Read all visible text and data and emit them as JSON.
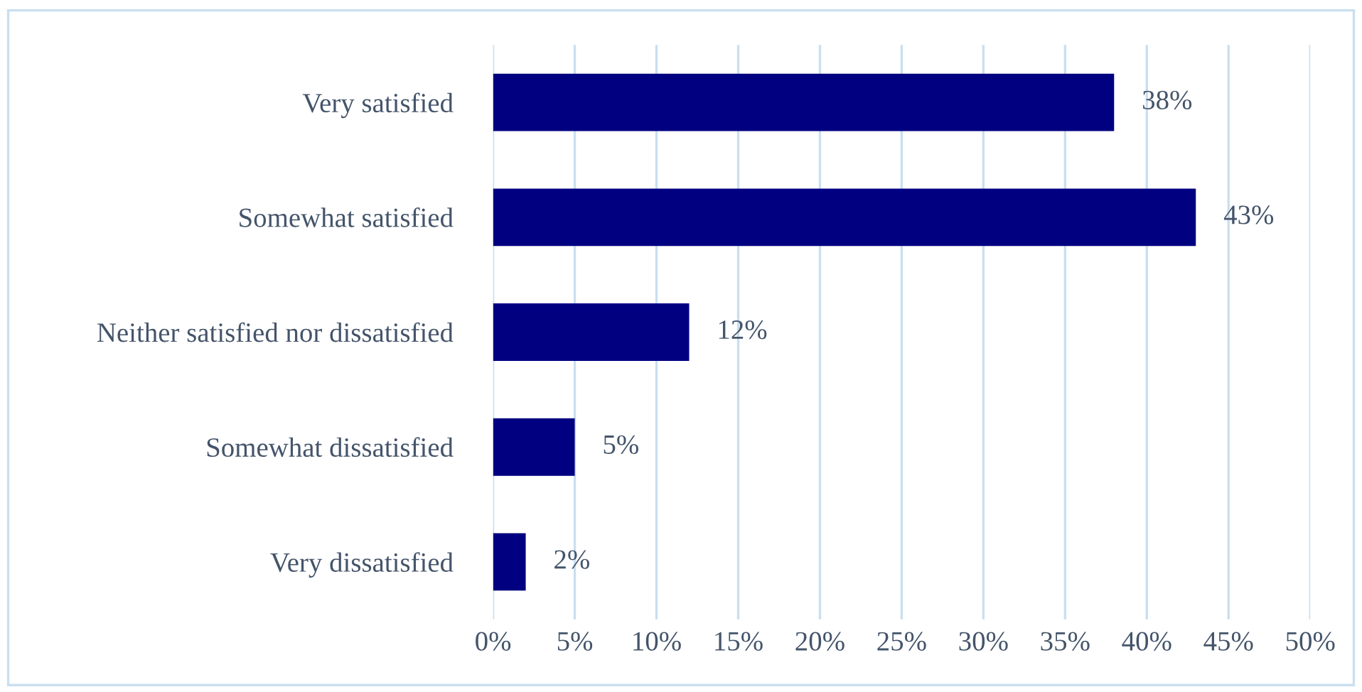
{
  "chart_data": {
    "type": "bar",
    "orientation": "horizontal",
    "categories": [
      "Very satisfied",
      "Somewhat satisfied",
      "Neither satisfied nor dissatisfied",
      "Somewhat dissatisfied",
      "Very dissatisfied"
    ],
    "values": [
      38,
      43,
      12,
      5,
      2
    ],
    "value_labels": [
      "38%",
      "43%",
      "12%",
      "5%",
      "2%"
    ],
    "color": "#000080",
    "xlim": [
      0,
      50
    ],
    "xticks": [
      {
        "value": 0,
        "label": "0%"
      },
      {
        "value": 5,
        "label": "5%"
      },
      {
        "value": 10,
        "label": "10%"
      },
      {
        "value": 15,
        "label": "15%"
      },
      {
        "value": 20,
        "label": "20%"
      },
      {
        "value": 25,
        "label": "25%"
      },
      {
        "value": 30,
        "label": "30%"
      },
      {
        "value": 35,
        "label": "35%"
      },
      {
        "value": 40,
        "label": "40%"
      },
      {
        "value": 45,
        "label": "45%"
      },
      {
        "value": 50,
        "label": "50%"
      }
    ],
    "grid": "x"
  }
}
